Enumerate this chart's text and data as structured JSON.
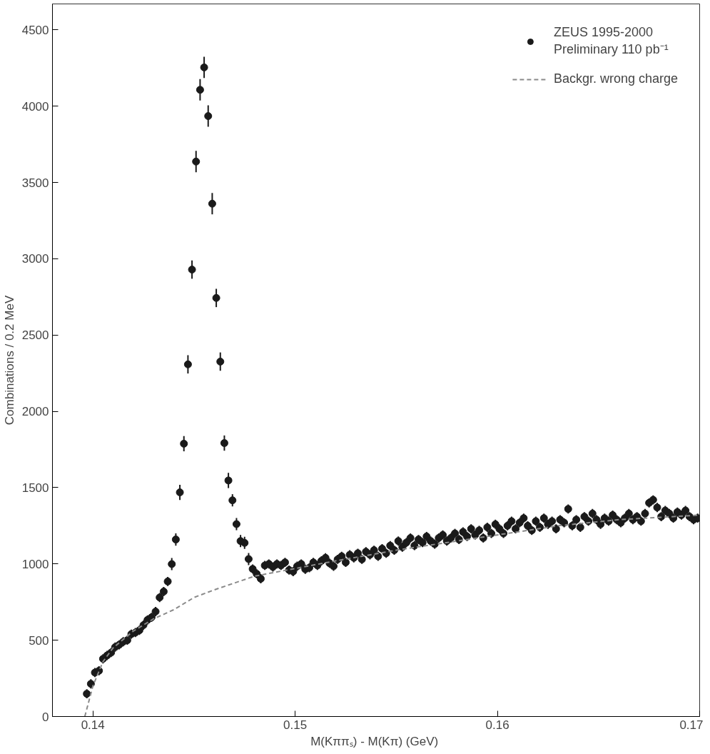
{
  "chart_data": {
    "type": "scatter",
    "xlabel": "M(Kππₛ) - M(Kπ)  (GeV)",
    "ylabel": "Combinations / 0.2 MeV",
    "xlim": [
      0.138,
      0.17
    ],
    "xticks": [
      0.14,
      0.15,
      0.16,
      0.17
    ],
    "ylim": [
      0,
      4670
    ],
    "yticks": [
      0,
      500,
      1000,
      1500,
      2000,
      2500,
      3000,
      3500,
      4000,
      4500
    ],
    "grid": false,
    "legend": "top right",
    "marker": "circle",
    "series": [
      {
        "name": "ZEUS 1995-2000\nPreliminary 110 pb⁻¹",
        "color": "#1a1a1a",
        "x": [
          0.1397,
          0.1399,
          0.1401,
          0.1403,
          0.1405,
          0.1407,
          0.1409,
          0.1411,
          0.1413,
          0.1415,
          0.1417,
          0.1419,
          0.1421,
          0.1423,
          0.1425,
          0.1427,
          0.1429,
          0.1431,
          0.1433,
          0.1435,
          0.1437,
          0.1439,
          0.1441,
          0.1443,
          0.1445,
          0.1447,
          0.1449,
          0.1451,
          0.1453,
          0.1455,
          0.1457,
          0.1459,
          0.1461,
          0.1463,
          0.1465,
          0.1467,
          0.1469,
          0.1471,
          0.1473,
          0.1475,
          0.1477,
          0.1479,
          0.1481,
          0.1483,
          0.1485,
          0.1487,
          0.1489,
          0.1491,
          0.1493,
          0.1495,
          0.1497,
          0.1499,
          0.1501,
          0.1503,
          0.1505,
          0.1507,
          0.1509,
          0.1511,
          0.1513,
          0.1515,
          0.1517,
          0.1519,
          0.1521,
          0.1523,
          0.1525,
          0.1527,
          0.1529,
          0.1531,
          0.1533,
          0.1535,
          0.1537,
          0.1539,
          0.1541,
          0.1543,
          0.1545,
          0.1547,
          0.1549,
          0.1551,
          0.1553,
          0.1555,
          0.1557,
          0.1559,
          0.1561,
          0.1563,
          0.1565,
          0.1567,
          0.1569,
          0.1571,
          0.1573,
          0.1575,
          0.1577,
          0.1579,
          0.1581,
          0.1583,
          0.1585,
          0.1587,
          0.1589,
          0.1591,
          0.1593,
          0.1595,
          0.1597,
          0.1599,
          0.1601,
          0.1603,
          0.1605,
          0.1607,
          0.1609,
          0.1611,
          0.1613,
          0.1615,
          0.1617,
          0.1619,
          0.1621,
          0.1623,
          0.1625,
          0.1627,
          0.1629,
          0.1631,
          0.1633,
          0.1635,
          0.1637,
          0.1639,
          0.1641,
          0.1643,
          0.1645,
          0.1647,
          0.1649,
          0.1651,
          0.1653,
          0.1655,
          0.1657,
          0.1659,
          0.1661,
          0.1663,
          0.1665,
          0.1667,
          0.1669,
          0.1671,
          0.1673,
          0.1675,
          0.1677,
          0.1679,
          0.1681,
          0.1683,
          0.1685,
          0.1687,
          0.1689,
          0.1691,
          0.1693,
          0.1695,
          0.1697,
          0.1699
        ],
        "values": [
          149,
          214,
          288,
          300,
          378,
          400,
          419,
          455,
          470,
          490,
          500,
          540,
          550,
          565,
          599,
          633,
          650,
          688,
          780,
          819,
          885,
          999,
          1160,
          1469,
          1788,
          2308,
          2929,
          3637,
          4107,
          4254,
          3935,
          3361,
          2743,
          2326,
          1792,
          1547,
          1417,
          1261,
          1150,
          1138,
          1032,
          967,
          935,
          903,
          990,
          1000,
          980,
          1000,
          990,
          1010,
          960,
          950,
          985,
          1000,
          965,
          975,
          1010,
          990,
          1020,
          1040,
          1005,
          985,
          1030,
          1050,
          1010,
          1060,
          1040,
          1070,
          1030,
          1080,
          1060,
          1090,
          1050,
          1100,
          1070,
          1120,
          1090,
          1150,
          1110,
          1140,
          1170,
          1120,
          1160,
          1140,
          1180,
          1150,
          1130,
          1170,
          1190,
          1150,
          1170,
          1200,
          1160,
          1210,
          1180,
          1230,
          1190,
          1220,
          1170,
          1240,
          1200,
          1260,
          1230,
          1200,
          1250,
          1280,
          1230,
          1270,
          1300,
          1250,
          1220,
          1280,
          1240,
          1300,
          1260,
          1280,
          1230,
          1290,
          1270,
          1360,
          1250,
          1290,
          1240,
          1310,
          1280,
          1330,
          1290,
          1260,
          1300,
          1280,
          1320,
          1290,
          1270,
          1300,
          1330,
          1290,
          1310,
          1280,
          1330,
          1400,
          1420,
          1370,
          1310,
          1350,
          1330,
          1300,
          1340,
          1320,
          1350,
          1310,
          1290,
          1300
        ],
        "errors": [
          30,
          30,
          30,
          30,
          30,
          30,
          30,
          30,
          30,
          30,
          30,
          30,
          30,
          30,
          30,
          30,
          30,
          30,
          30,
          30,
          30,
          40,
          40,
          50,
          50,
          60,
          60,
          70,
          70,
          70,
          70,
          70,
          60,
          60,
          50,
          50,
          40,
          40,
          40,
          40,
          40,
          30,
          30,
          30,
          30,
          30,
          30,
          30,
          30,
          30,
          30,
          30,
          30,
          30,
          30,
          30,
          30,
          30,
          30,
          30,
          30,
          30,
          30,
          30,
          30,
          30,
          30,
          30,
          30,
          30,
          30,
          30,
          30,
          30,
          30,
          30,
          30,
          30,
          30,
          30,
          30,
          30,
          30,
          30,
          30,
          30,
          30,
          30,
          30,
          30,
          30,
          30,
          30,
          30,
          30,
          30,
          30,
          30,
          30,
          30,
          30,
          30,
          30,
          30,
          30,
          30,
          30,
          30,
          30,
          30,
          30,
          30,
          30,
          30,
          30,
          30,
          30,
          30,
          30,
          30,
          30,
          30,
          30,
          30,
          30,
          30,
          30,
          30,
          30,
          30,
          30,
          30,
          30,
          30,
          30,
          30,
          30,
          30,
          30,
          30,
          30,
          30,
          30,
          30,
          30,
          30,
          30,
          30,
          30,
          30,
          30,
          30
        ]
      },
      {
        "name": "Backgr. wrong charge",
        "type": "line",
        "color": "#8a8a8a",
        "line_style": "dashed",
        "marker": "none",
        "x": [
          0.1396,
          0.14,
          0.1405,
          0.141,
          0.142,
          0.143,
          0.144,
          0.145,
          0.146,
          0.147,
          0.148,
          0.15,
          0.152,
          0.155,
          0.158,
          0.16,
          0.163,
          0.166,
          0.17
        ],
        "values": [
          0,
          200,
          360,
          450,
          560,
          640,
          700,
          780,
          830,
          875,
          920,
          970,
          1020,
          1090,
          1150,
          1190,
          1250,
          1290,
          1320
        ]
      }
    ]
  }
}
